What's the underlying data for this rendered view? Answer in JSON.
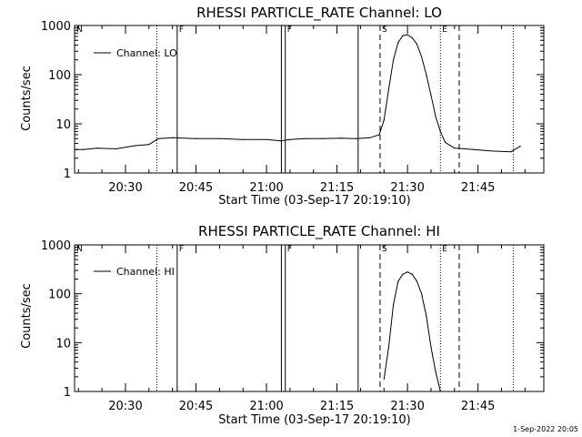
{
  "footer": {
    "timestamp": "1-Sep-2022 20:05"
  },
  "chart_data": [
    {
      "type": "line",
      "title": "RHESSI PARTICLE_RATE Channel: LO",
      "xlabel": "Start Time (03-Sep-17 20:19:10)",
      "ylabel": "Counts/sec",
      "y_scale": "log",
      "ylim": [
        1,
        1000
      ],
      "xlim": [
        "20:19:10",
        "21:59:00"
      ],
      "x_ticks": [
        "20:30",
        "20:45",
        "21:00",
        "21:15",
        "21:30",
        "21:45"
      ],
      "y_ticks": [
        "1",
        "10",
        "100",
        "1000"
      ],
      "legend": {
        "placement": "top-left",
        "entries": [
          "Channel: LO"
        ]
      },
      "markers": [
        {
          "time": "20:19:10",
          "style": "dotted",
          "label": "N"
        },
        {
          "time": "20:36:40",
          "style": "dotted",
          "label": ""
        },
        {
          "time": "20:41:00",
          "style": "solid",
          "label": "F"
        },
        {
          "time": "21:03:10",
          "style": "solid",
          "label": ""
        },
        {
          "time": "21:04:00",
          "style": "solid",
          "label": "F"
        },
        {
          "time": "21:19:30",
          "style": "solid",
          "label": ""
        },
        {
          "time": "21:24:10",
          "style": "dashed",
          "label": "S"
        },
        {
          "time": "21:37:00",
          "style": "dotted",
          "label": "E"
        },
        {
          "time": "21:41:00",
          "style": "dashed",
          "label": ""
        },
        {
          "time": "21:52:30",
          "style": "dotted",
          "label": ""
        }
      ],
      "series": [
        {
          "x": [
            "20:19:10",
            "20:21:00",
            "20:24:00",
            "20:28:00",
            "20:32:00",
            "20:35:00",
            "20:37:00",
            "20:40:00",
            "20:45:00",
            "20:50:00",
            "20:55:00",
            "21:00:00",
            "21:03:00",
            "21:05:00",
            "21:08:00",
            "21:12:00",
            "21:16:00",
            "21:19:00",
            "21:22:00",
            "21:24:00",
            "21:25:00",
            "21:26:00",
            "21:27:00",
            "21:28:00",
            "21:29:00",
            "21:30:00",
            "21:31:00",
            "21:32:00",
            "21:33:00",
            "21:34:00",
            "21:35:00",
            "21:36:00",
            "21:37:00",
            "21:38:00",
            "21:40:00",
            "21:44:00",
            "21:48:00",
            "21:52:00",
            "21:54:00"
          ],
          "y": [
            3,
            3,
            3.2,
            3.1,
            3.6,
            3.8,
            5,
            5.2,
            5.0,
            5.0,
            4.8,
            4.8,
            4.5,
            4.8,
            5.0,
            5.0,
            5.1,
            5.0,
            5.2,
            6,
            12,
            50,
            200,
            450,
            620,
            650,
            560,
            420,
            230,
            100,
            38,
            14,
            7,
            4.2,
            3.2,
            3.0,
            2.8,
            2.7,
            3.5
          ]
        }
      ]
    },
    {
      "type": "line",
      "title": "RHESSI PARTICLE_RATE Channel: HI",
      "xlabel": "Start Time (03-Sep-17 20:19:10)",
      "ylabel": "Counts/sec",
      "y_scale": "log",
      "ylim": [
        1,
        1000
      ],
      "xlim": [
        "20:19:10",
        "21:59:00"
      ],
      "x_ticks": [
        "20:30",
        "20:45",
        "21:00",
        "21:15",
        "21:30",
        "21:45"
      ],
      "y_ticks": [
        "1",
        "10",
        "100",
        "1000"
      ],
      "legend": {
        "placement": "top-left",
        "entries": [
          "Channel: HI"
        ]
      },
      "markers": [
        {
          "time": "20:19:10",
          "style": "dotted",
          "label": "N"
        },
        {
          "time": "20:36:40",
          "style": "dotted",
          "label": ""
        },
        {
          "time": "20:41:00",
          "style": "solid",
          "label": "F"
        },
        {
          "time": "21:03:10",
          "style": "solid",
          "label": ""
        },
        {
          "time": "21:04:00",
          "style": "solid",
          "label": "F"
        },
        {
          "time": "21:19:30",
          "style": "solid",
          "label": ""
        },
        {
          "time": "21:24:10",
          "style": "dashed",
          "label": "S"
        },
        {
          "time": "21:37:00",
          "style": "dotted",
          "label": "E"
        },
        {
          "time": "21:41:00",
          "style": "dashed",
          "label": ""
        },
        {
          "time": "21:52:30",
          "style": "dotted",
          "label": ""
        }
      ],
      "series": [
        {
          "x": [
            "21:25:00",
            "21:26:00",
            "21:27:00",
            "21:28:00",
            "21:29:00",
            "21:30:00",
            "21:31:00",
            "21:32:00",
            "21:33:00",
            "21:34:00",
            "21:35:00",
            "21:36:00",
            "21:37:00"
          ],
          "y": [
            1.8,
            8,
            60,
            180,
            250,
            280,
            250,
            180,
            100,
            35,
            8,
            2.5,
            1.0
          ]
        }
      ]
    }
  ]
}
